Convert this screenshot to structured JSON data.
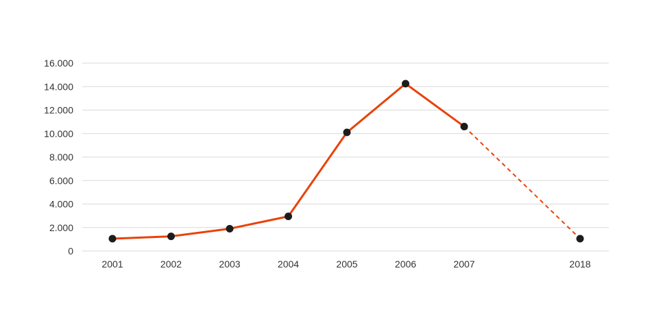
{
  "chart_data": {
    "type": "line",
    "categories": [
      "2001",
      "2002",
      "2003",
      "2004",
      "2005",
      "2006",
      "2007",
      "2018"
    ],
    "x": [
      2001,
      2002,
      2003,
      2004,
      2005,
      2006,
      2007,
      2018
    ],
    "series": [
      {
        "values": [
          1050,
          1250,
          1900,
          2950,
          10100,
          14250,
          10600,
          1050
        ],
        "dashed_from_index": 6
      }
    ],
    "y_ticks": [
      "0",
      "2.000",
      "4.000",
      "6.000",
      "8.000",
      "10.000",
      "12.000",
      "14.000",
      "16.000"
    ],
    "ylim": [
      0,
      16000
    ],
    "grid": "horizontal",
    "title": "",
    "xlabel": "",
    "ylabel": ""
  },
  "colors": {
    "line": "#e8420a",
    "marker": "#1c1c1c",
    "grid": "#d9d9d9",
    "text": "#333333"
  }
}
